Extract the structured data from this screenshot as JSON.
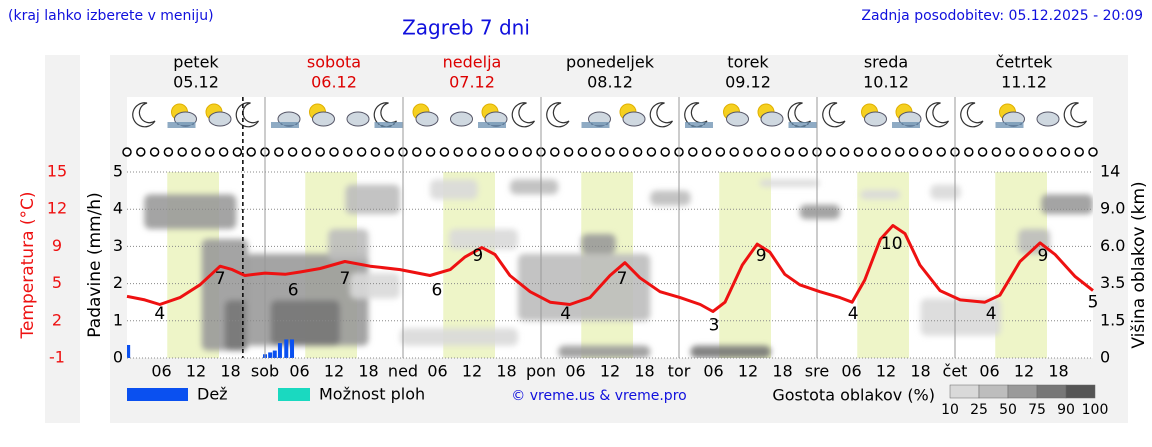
{
  "header": {
    "note": "(kraj lahko izberete v meniju)",
    "title": "Zagreb 7 dni",
    "updated": "Zadnja posodobitev: 05.12.2025 - 20:09"
  },
  "chart_data": {
    "type": "meteogram",
    "days": [
      {
        "name": "petek",
        "date": "05.12",
        "color": "#000000"
      },
      {
        "name": "sobota",
        "date": "06.12",
        "color": "#dd0000"
      },
      {
        "name": "nedelja",
        "date": "07.12",
        "color": "#dd0000"
      },
      {
        "name": "ponedeljek",
        "date": "08.12",
        "color": "#000000"
      },
      {
        "name": "torek",
        "date": "09.12",
        "color": "#000000"
      },
      {
        "name": "sreda",
        "date": "10.12",
        "color": "#000000"
      },
      {
        "name": "četrtek",
        "date": "11.12",
        "color": "#000000"
      }
    ],
    "xlim": [
      0,
      168
    ],
    "xticks": [
      {
        "value": 6,
        "label": "06"
      },
      12,
      18,
      {
        "value": 24,
        "label": "sob"
      },
      {
        "value": 30,
        "label": "06"
      },
      {
        "value": 36,
        "label": "12"
      },
      {
        "value": 42,
        "label": "18"
      },
      {
        "value": 48,
        "label": "ned"
      },
      {
        "value": 54,
        "label": "06"
      },
      {
        "value": 60,
        "label": "12"
      },
      {
        "value": 66,
        "label": "18"
      },
      {
        "value": 72,
        "label": "pon"
      },
      {
        "value": 78,
        "label": "06"
      },
      {
        "value": 84,
        "label": "12"
      },
      {
        "value": 90,
        "label": "18"
      },
      {
        "value": 96,
        "label": "tor"
      },
      {
        "value": 102,
        "label": "06"
      },
      {
        "value": 108,
        "label": "12"
      },
      {
        "value": 114,
        "label": "18"
      },
      {
        "value": 120,
        "label": "sre"
      },
      {
        "value": 126,
        "label": "06"
      },
      {
        "value": 132,
        "label": "12"
      },
      {
        "value": 138,
        "label": "18"
      },
      {
        "value": 144,
        "label": "čet"
      },
      {
        "value": 150,
        "label": "06"
      },
      {
        "value": 156,
        "label": "12"
      },
      {
        "value": 162,
        "label": "18"
      }
    ],
    "now": 20.15,
    "daylight": [
      7,
      16
    ],
    "temperature": {
      "axis_label": "Temperatura (°C)",
      "color": "#ee1111",
      "ylim": [
        -1,
        15
      ],
      "yticks": [
        -1,
        {
          "value": 2.2,
          "label": "2"
        },
        {
          "value": 5.4,
          "label": "5"
        },
        {
          "value": 8.6,
          "label": "9"
        },
        {
          "value": 11.8,
          "label": "12"
        },
        15
      ],
      "x": [
        0,
        3.1,
        5.7,
        9.2,
        12.7,
        16.2,
        18.3,
        20.5,
        24.0,
        27.5,
        30.1,
        33.6,
        37.9,
        42.3,
        47.5,
        52.7,
        56.2,
        58.8,
        61.7,
        64.0,
        66.6,
        70.1,
        73.6,
        77.0,
        80.5,
        84.0,
        86.6,
        89.2,
        92.7,
        96.2,
        99.7,
        101.9,
        104.0,
        107.0,
        109.6,
        111.8,
        114.4,
        117.0,
        120.5,
        124.0,
        126.1,
        128.3,
        131.0,
        133.2,
        135.3,
        137.9,
        141.4,
        144.9,
        149.2,
        151.8,
        155.3,
        158.8,
        161.4,
        164.9,
        168.0
      ],
      "values": [
        4.3,
        4.0,
        3.6,
        4.2,
        5.3,
        6.9,
        6.6,
        6.1,
        6.3,
        6.2,
        6.4,
        6.7,
        7.3,
        6.9,
        6.6,
        6.1,
        6.6,
        7.7,
        8.5,
        7.9,
        6.1,
        4.7,
        3.8,
        3.6,
        4.2,
        6.1,
        7.2,
        5.9,
        4.7,
        4.2,
        3.6,
        3.0,
        3.8,
        7.0,
        8.8,
        8.1,
        6.2,
        5.3,
        4.7,
        4.2,
        3.8,
        5.7,
        9.2,
        10.4,
        9.7,
        7.0,
        4.8,
        4.0,
        3.8,
        4.4,
        7.3,
        8.9,
        7.9,
        6.0,
        4.8
      ],
      "labels": {
        "x": [
          5.7,
          16.2,
          28.9,
          37.9,
          53.9,
          61.0,
          76.3,
          86.1,
          102.1,
          110.3,
          126.3,
          133.0,
          150.3,
          159.3,
          168.0
        ],
        "values": [
          4,
          7,
          6,
          7,
          6,
          9,
          4,
          7,
          3,
          9,
          4,
          10,
          4,
          9,
          5
        ]
      }
    },
    "precipitation": {
      "axis_label": "Padavine (mm/h)",
      "ylim": [
        0,
        5
      ],
      "yticks": [
        0,
        1,
        2,
        3,
        4,
        5
      ],
      "series": [
        {
          "name": "Dež",
          "color": "#0a50f0",
          "x": [
            0.2,
            24.0,
            24.9,
            25.7,
            26.6,
            27.7,
            28.7
          ],
          "values": [
            0.35,
            0.1,
            0.15,
            0.2,
            0.4,
            0.5,
            0.5
          ]
        },
        {
          "name": "Možnost ploh",
          "color": "#1ad9c0",
          "x": [],
          "values": []
        }
      ]
    },
    "clouds": {
      "axis_label": "Višina oblakov (km)",
      "y2ticks": [
        0,
        1.5,
        3.5,
        {
          "value": 6,
          "label": "6.0"
        },
        {
          "value": 9,
          "label": "9.0"
        },
        14
      ],
      "legend_title": "Gostota oblakov (%)",
      "levels": [
        10,
        25,
        50,
        75,
        90,
        100
      ],
      "colors": [
        "#d9d9d9",
        "#bdbdbd",
        "#9a9a9a",
        "#777777",
        "#555555"
      ],
      "cells": [
        {
          "t": [
            3,
            19
          ],
          "km": [
            7.4,
            11
          ],
          "pct": 75
        },
        {
          "t": [
            13,
            21
          ],
          "km": [
            0.3,
            6.6
          ],
          "pct": 75
        },
        {
          "t": [
            17,
            21
          ],
          "km": [
            0.3,
            2.6
          ],
          "pct": 90
        },
        {
          "t": [
            20.5,
            42
          ],
          "km": [
            0.5,
            5.5
          ],
          "pct": 75
        },
        {
          "t": [
            25,
            37
          ],
          "km": [
            0.5,
            2.6
          ],
          "pct": 90
        },
        {
          "t": [
            38,
            47.5
          ],
          "km": [
            8.6,
            12.3
          ],
          "pct": 50
        },
        {
          "t": [
            35,
            42
          ],
          "km": [
            5.0,
            7.4
          ],
          "pct": 50
        },
        {
          "t": [
            47.5,
            68
          ],
          "km": [
            0.5,
            1.2
          ],
          "pct": 25
        },
        {
          "t": [
            52.7,
            61
          ],
          "km": [
            10.3,
            13
          ],
          "pct": 25
        },
        {
          "t": [
            66.6,
            75
          ],
          "km": [
            11,
            13
          ],
          "pct": 50
        },
        {
          "t": [
            68,
            91
          ],
          "km": [
            1.5,
            5.5
          ],
          "pct": 50
        },
        {
          "t": [
            79,
            85
          ],
          "km": [
            5.5,
            7
          ],
          "pct": 75
        },
        {
          "t": [
            75,
            91
          ],
          "km": [
            0,
            0.5
          ],
          "pct": 75
        },
        {
          "t": [
            91,
            98
          ],
          "km": [
            9.5,
            11.5
          ],
          "pct": 50
        },
        {
          "t": [
            98,
            112
          ],
          "km": [
            0,
            0.5
          ],
          "pct": 90
        },
        {
          "t": [
            110,
            120.5
          ],
          "km": [
            12,
            13
          ],
          "pct": 25
        },
        {
          "t": [
            117,
            124
          ],
          "km": [
            8.2,
            9.6
          ],
          "pct": 75
        },
        {
          "t": [
            127.5,
            134.5
          ],
          "km": [
            10.3,
            11.6
          ],
          "pct": 25
        },
        {
          "t": [
            139.7,
            145
          ],
          "km": [
            10.3,
            12.3
          ],
          "pct": 25
        },
        {
          "t": [
            138,
            152
          ],
          "km": [
            0.9,
            2.7
          ],
          "pct": 25
        },
        {
          "t": [
            159,
            168
          ],
          "km": [
            8.6,
            11
          ],
          "pct": 75
        },
        {
          "t": [
            155,
            160.5
          ],
          "km": [
            5.5,
            7.4
          ],
          "pct": 50
        },
        {
          "t": [
            38.8,
            47.5
          ],
          "km": [
            2.7,
            4.2
          ],
          "pct": 25
        },
        {
          "t": [
            56,
            68
          ],
          "km": [
            5.8,
            7.4
          ],
          "pct": 25
        }
      ]
    },
    "credit": "© vreme.us & vreme.pro"
  }
}
